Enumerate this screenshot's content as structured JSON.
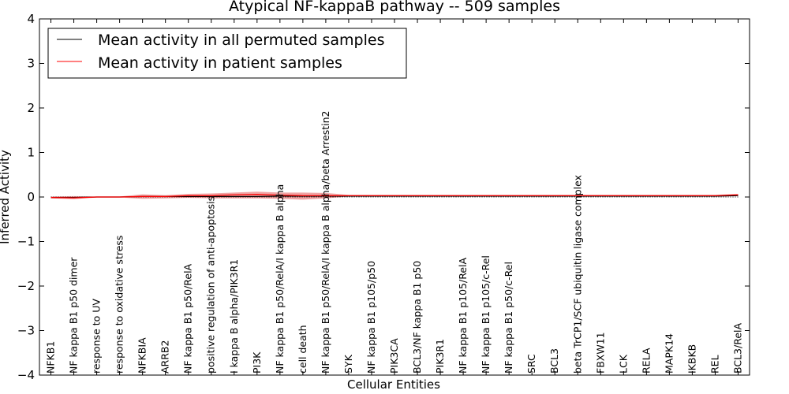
{
  "chart_data": {
    "type": "line",
    "title": "Atypical NF-kappaB pathway -- 509 samples",
    "xlabel": "Cellular Entities",
    "ylabel": "Inferred Activity",
    "ylim": [
      -4,
      4
    ],
    "yticks": [
      -4,
      -3,
      -2,
      -1,
      0,
      1,
      2,
      3,
      4
    ],
    "ytick_labels": [
      "−4",
      "−3",
      "−2",
      "−1",
      "0",
      "1",
      "2",
      "3",
      "4"
    ],
    "legend_position": "top-left",
    "categories": [
      "NFKB1",
      "NF kappa B1 p50 dimer",
      "response to UV",
      "response to oxidative stress",
      "NFKBIA",
      "ARRB2",
      "NF kappa B1 p50/RelA",
      "positive regulation of anti-apoptosis",
      "I kappa B alpha/PIK3R1",
      "PI3K",
      "NF kappa B1 p50/RelA/I kappa B alpha",
      "cell death",
      "NF kappa B1 p50/RelA/I kappa B alpha/beta Arrestin2",
      "SYK",
      "NF kappa B1 p105/p50",
      "PIK3CA",
      "BCL3/NF kappa B1 p50",
      "PIK3R1",
      "NF kappa B1 p105/RelA",
      "NF kappa B1 p105/c-Rel",
      "NF kappa B1 p50/c-Rel",
      "SRC",
      "BCL3",
      "beta TrCP1/SCF ubiquitin ligase complex",
      "FBXW11",
      "LCK",
      "RELA",
      "MAPK14",
      "IKBKB",
      "REL",
      "BCL3/RelA"
    ],
    "series": [
      {
        "name": "Mean activity in all permuted samples",
        "color": "#000000",
        "values": [
          -0.01,
          -0.01,
          0.0,
          0.0,
          0.01,
          0.01,
          0.01,
          0.01,
          0.01,
          0.01,
          0.02,
          0.02,
          0.02,
          0.02,
          0.02,
          0.02,
          0.02,
          0.02,
          0.02,
          0.02,
          0.02,
          0.02,
          0.02,
          0.02,
          0.02,
          0.02,
          0.02,
          0.02,
          0.02,
          0.02,
          0.03
        ]
      },
      {
        "name": "Mean activity in patient samples",
        "color": "#ff0000",
        "values": [
          -0.01,
          -0.02,
          0.0,
          0.0,
          0.01,
          0.01,
          0.03,
          0.03,
          0.05,
          0.06,
          0.04,
          0.03,
          0.03,
          0.03,
          0.03,
          0.03,
          0.03,
          0.03,
          0.03,
          0.03,
          0.03,
          0.03,
          0.03,
          0.03,
          0.03,
          0.03,
          0.03,
          0.03,
          0.03,
          0.03,
          0.05
        ]
      }
    ],
    "band": {
      "color": "#dd3333",
      "lower": [
        -0.03,
        -0.05,
        -0.01,
        -0.01,
        -0.04,
        -0.03,
        -0.02,
        -0.03,
        -0.03,
        -0.03,
        -0.04,
        -0.06,
        -0.03,
        0.01,
        0.01,
        0.01,
        0.01,
        0.01,
        0.01,
        0.01,
        0.01,
        0.01,
        0.01,
        0.01,
        0.01,
        0.01,
        0.01,
        0.01,
        0.01,
        0.01,
        0.02
      ],
      "upper": [
        0.01,
        0.02,
        0.01,
        0.01,
        0.06,
        0.04,
        0.07,
        0.08,
        0.1,
        0.12,
        0.1,
        0.1,
        0.09,
        0.05,
        0.05,
        0.05,
        0.05,
        0.05,
        0.05,
        0.05,
        0.05,
        0.05,
        0.05,
        0.05,
        0.05,
        0.05,
        0.05,
        0.05,
        0.05,
        0.05,
        0.07
      ]
    },
    "reference_line": {
      "value": 0,
      "style": "dotted"
    }
  }
}
